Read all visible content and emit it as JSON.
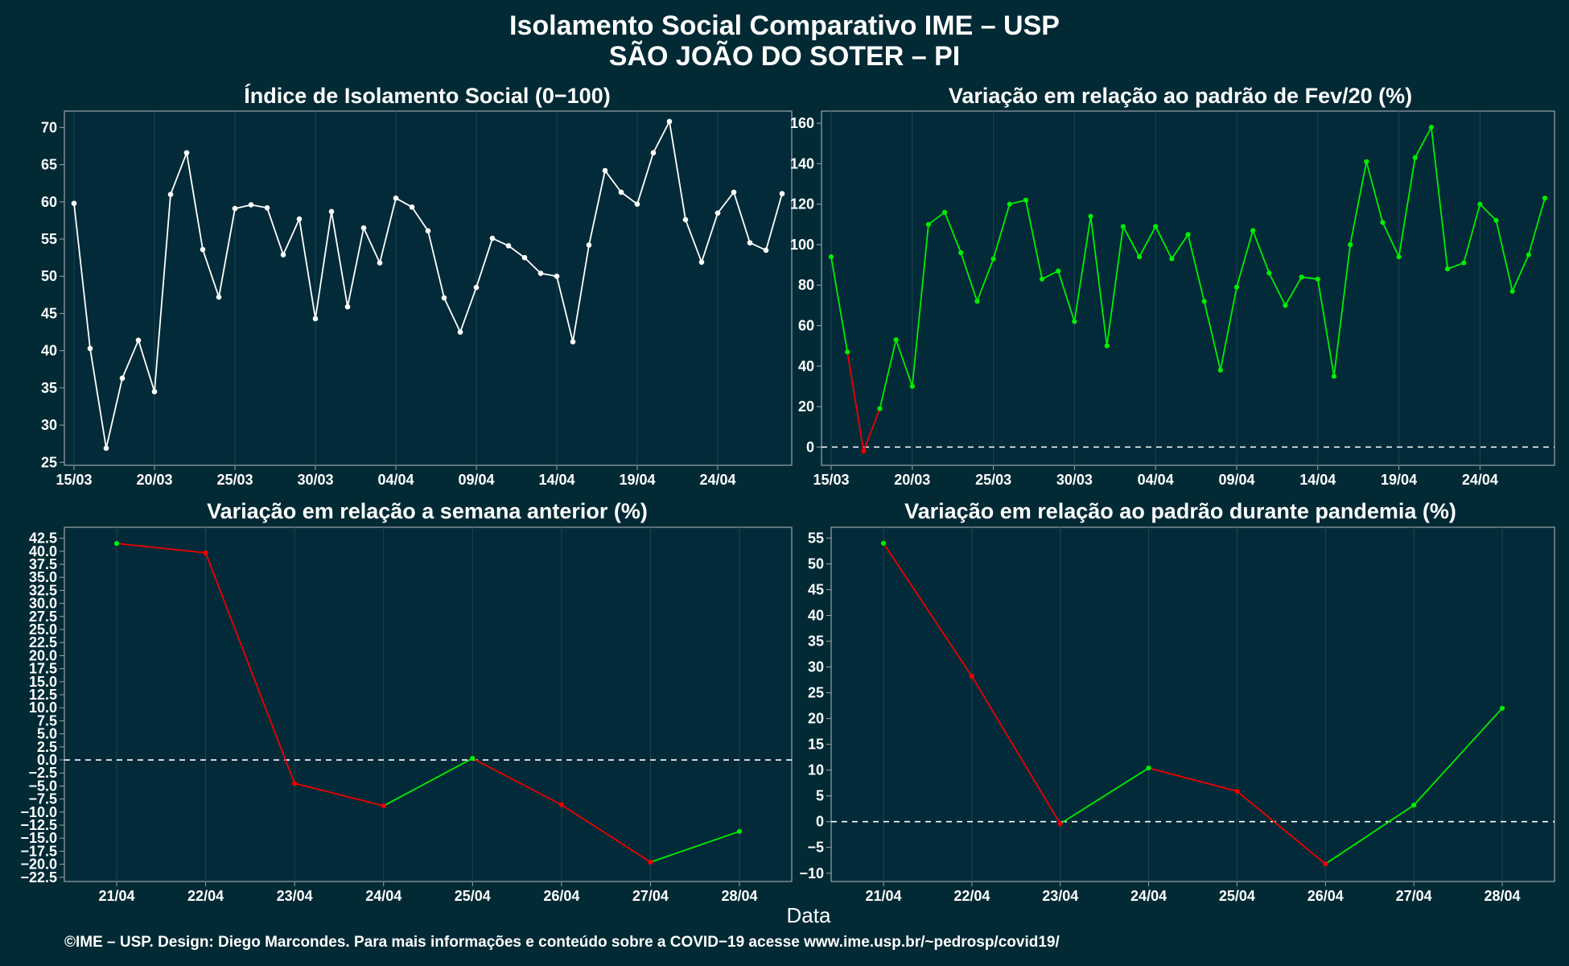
{
  "header": {
    "title": "Isolamento Social Comparativo IME – USP",
    "subtitle": "SÃO JOÃO DO SOTER – PI"
  },
  "xlabel": "Data",
  "caption": "©IME – USP. Design: Diego Marcondes. Para mais informações e conteúdo sobre a COVID−19 acesse www.ime.usp.br/~pedrosp/covid19/",
  "colors": {
    "background": "#022a35",
    "panel": "#032a38",
    "frame": "#9aa5aa",
    "grid": "#1d4451",
    "white_series": "#ffffff",
    "positive": "#00ee00",
    "negative": "#ee0000",
    "reference_line": "#ffffff"
  },
  "chart_data": [
    {
      "type": "line",
      "title": "Índice de Isolamento Social (0−100)",
      "color_mode": "white",
      "x": [
        "15/03",
        "16/03",
        "17/03",
        "18/03",
        "19/03",
        "20/03",
        "21/03",
        "22/03",
        "23/03",
        "24/03",
        "25/03",
        "26/03",
        "27/03",
        "28/03",
        "29/03",
        "30/03",
        "31/03",
        "01/04",
        "02/04",
        "03/04",
        "04/04",
        "05/04",
        "06/04",
        "07/04",
        "08/04",
        "09/04",
        "10/04",
        "11/04",
        "12/04",
        "13/04",
        "14/04",
        "15/04",
        "16/04",
        "17/04",
        "18/04",
        "19/04",
        "20/04",
        "21/04",
        "22/04",
        "23/04",
        "24/04",
        "25/04",
        "26/04",
        "27/04",
        "28/04"
      ],
      "xticks": [
        "15/03",
        "20/03",
        "25/03",
        "30/03",
        "04/04",
        "09/04",
        "14/04",
        "19/04",
        "24/04"
      ],
      "values": [
        59.8,
        40.3,
        26.9,
        36.3,
        41.4,
        34.5,
        61.0,
        66.6,
        53.6,
        47.2,
        59.1,
        59.6,
        59.2,
        52.9,
        57.7,
        44.3,
        58.7,
        45.9,
        56.5,
        51.8,
        60.5,
        59.3,
        56.1,
        47.1,
        42.5,
        48.5,
        55.1,
        54.1,
        52.5,
        50.4,
        50.0,
        41.2,
        54.2,
        64.2,
        61.3,
        59.7,
        66.6,
        70.8,
        57.6,
        51.9,
        58.5,
        61.3,
        54.5,
        53.5,
        61.1
      ],
      "yticks": [
        "25",
        "30",
        "35",
        "40",
        "45",
        "50",
        "55",
        "60",
        "65",
        "70"
      ],
      "ylim": [
        24.6,
        72.2
      ]
    },
    {
      "type": "line",
      "title": "Variação em relação ao padrão de Fev/20 (%)",
      "color_mode": "sign",
      "zero_line": true,
      "x": [
        "15/03",
        "16/03",
        "17/03",
        "18/03",
        "19/03",
        "20/03",
        "21/03",
        "22/03",
        "23/03",
        "24/03",
        "25/03",
        "26/03",
        "27/03",
        "28/03",
        "29/03",
        "30/03",
        "31/03",
        "01/04",
        "02/04",
        "03/04",
        "04/04",
        "05/04",
        "06/04",
        "07/04",
        "08/04",
        "09/04",
        "10/04",
        "11/04",
        "12/04",
        "13/04",
        "14/04",
        "15/04",
        "16/04",
        "17/04",
        "18/04",
        "19/04",
        "20/04",
        "21/04",
        "22/04",
        "23/04",
        "24/04",
        "25/04",
        "26/04",
        "27/04",
        "28/04"
      ],
      "xticks": [
        "15/03",
        "20/03",
        "25/03",
        "30/03",
        "04/04",
        "09/04",
        "14/04",
        "19/04",
        "24/04"
      ],
      "values": [
        94,
        47,
        -2,
        19,
        53,
        30,
        110,
        116,
        96,
        72,
        93,
        120,
        122,
        83,
        87,
        62,
        114,
        50,
        109,
        94,
        109,
        93,
        105,
        72,
        38,
        79,
        107,
        86,
        70,
        84,
        83,
        35,
        100,
        141,
        111,
        94,
        143,
        158,
        88,
        91,
        120,
        112,
        77,
        95,
        123
      ],
      "yticks": [
        "0",
        "20",
        "40",
        "60",
        "80",
        "100",
        "120",
        "140",
        "160"
      ],
      "ylim": [
        -9,
        166
      ]
    },
    {
      "type": "line",
      "title": "Variação em relação a semana anterior (%)",
      "color_mode": "trend",
      "zero_line": true,
      "x": [
        "21/04",
        "22/04",
        "23/04",
        "24/04",
        "25/04",
        "26/04",
        "27/04",
        "28/04"
      ],
      "xticks": [
        "21/04",
        "22/04",
        "23/04",
        "24/04",
        "25/04",
        "26/04",
        "27/04",
        "28/04"
      ],
      "values": [
        41.5,
        39.7,
        -4.5,
        -8.8,
        0.3,
        -8.6,
        -19.6,
        -13.7
      ],
      "yticks": [
        "−22.5",
        "−20.0",
        "−17.5",
        "−15.0",
        "−12.5",
        "−10.0",
        "−7.5",
        "−5.0",
        "−2.5",
        "0.0",
        "2.5",
        "5.0",
        "7.5",
        "10.0",
        "12.5",
        "15.0",
        "17.5",
        "20.0",
        "22.5",
        "25.0",
        "27.5",
        "30.0",
        "32.5",
        "35.0",
        "37.5",
        "40.0",
        "42.5"
      ],
      "ylim": [
        -23.3,
        44.6
      ]
    },
    {
      "type": "line",
      "title": "Variação em relação ao padrão durante pandemia (%)",
      "color_mode": "trend",
      "zero_line": true,
      "x": [
        "21/04",
        "22/04",
        "23/04",
        "24/04",
        "25/04",
        "26/04",
        "27/04",
        "28/04"
      ],
      "xticks": [
        "21/04",
        "22/04",
        "23/04",
        "24/04",
        "25/04",
        "26/04",
        "27/04",
        "28/04"
      ],
      "values": [
        54,
        28.2,
        -0.4,
        10.4,
        5.9,
        -8.2,
        3.2,
        22
      ],
      "yticks": [
        "−10",
        "−5",
        "0",
        "5",
        "10",
        "15",
        "20",
        "25",
        "30",
        "35",
        "40",
        "45",
        "50",
        "55"
      ],
      "ylim": [
        -11.6,
        57.1
      ]
    }
  ]
}
